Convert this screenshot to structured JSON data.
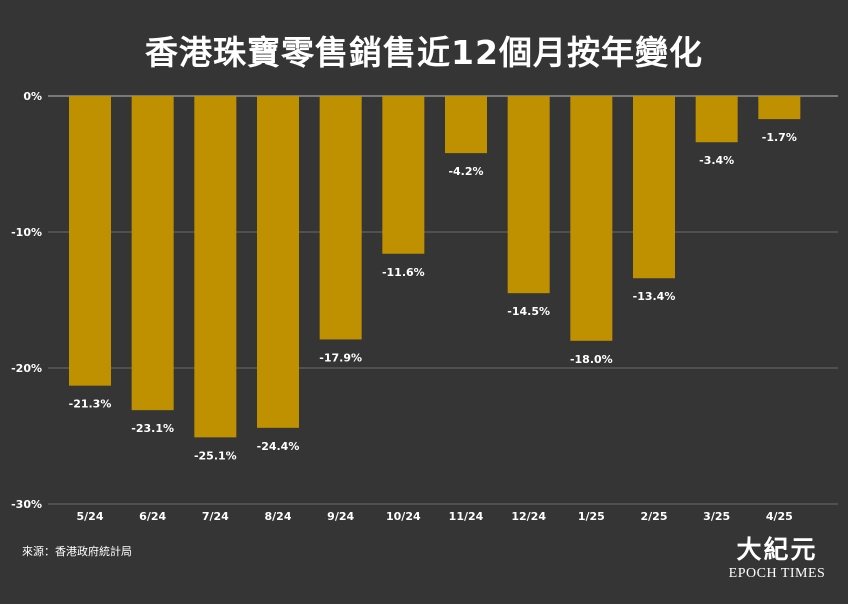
{
  "title": "香港珠寶零售銷售近12個月按年變化",
  "source": "來源：香港政府統計局",
  "logo": {
    "chinese": "大紀元",
    "english": "EPOCH TIMES"
  },
  "colors": {
    "background": "#353535",
    "bar": "#bf9000",
    "grid": "#6a6a6a",
    "text": "#ffffff"
  },
  "chart_data": {
    "type": "bar",
    "title": "香港珠寶零售銷售近12個月按年變化",
    "xlabel": "",
    "ylabel": "",
    "categories": [
      "5/24",
      "6/24",
      "7/24",
      "8/24",
      "9/24",
      "10/24",
      "11/24",
      "12/24",
      "1/25",
      "2/25",
      "3/25",
      "4/25"
    ],
    "values": [
      -21.3,
      -23.1,
      -25.1,
      -24.4,
      -17.9,
      -11.6,
      -4.2,
      -14.5,
      -18.0,
      -13.4,
      -3.4,
      -1.7
    ],
    "value_labels": [
      "-21.3%",
      "-23.1%",
      "-25.1%",
      "-24.4%",
      "-17.9%",
      "-11.6%",
      "-4.2%",
      "-14.5%",
      "-18.0%",
      "-13.4%",
      "-3.4%",
      "-1.7%"
    ],
    "ylim": [
      -30,
      0
    ],
    "yticks": [
      0,
      -10,
      -20,
      -30
    ],
    "ytick_labels": [
      "0%",
      "-10%",
      "-20%",
      "-30%"
    ],
    "grid": true,
    "legend": "none"
  }
}
